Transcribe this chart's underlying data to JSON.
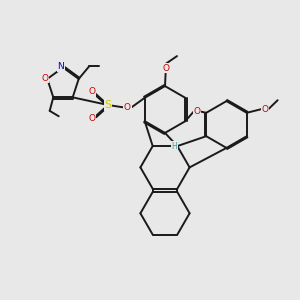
{
  "bg_color": "#e8e8e8",
  "line_color": "#1a1a1a",
  "bond_width": 1.4,
  "atoms": {
    "N": "#0000cc",
    "O": "#cc0000",
    "S": "#cccc00",
    "C": "#1a1a1a",
    "H": "#4a9a9a"
  },
  "xlim": [
    0,
    10
  ],
  "ylim": [
    0,
    10
  ]
}
